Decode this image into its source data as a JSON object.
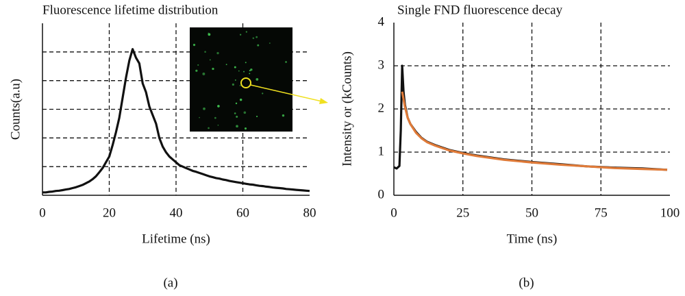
{
  "chart_data": [
    {
      "type": "line",
      "title": "Fluorescence lifetime distribution",
      "x_label": "Lifetime (ns)",
      "y_label": "Counts(a.u)",
      "caption": "(a)",
      "xlim": [
        0,
        80
      ],
      "xticks": [
        0,
        20,
        40,
        60,
        80
      ],
      "ylim": [
        0,
        6
      ],
      "ygrid": [
        1,
        2,
        3,
        4,
        5
      ],
      "grid": true,
      "series": [
        {
          "color": "#111111",
          "x": [
            0,
            1,
            2,
            3,
            4,
            5,
            6,
            7,
            8,
            9,
            10,
            11,
            12,
            13,
            14,
            15,
            16,
            17,
            18,
            19,
            20,
            21,
            22,
            23,
            24,
            25,
            26,
            27,
            28,
            29,
            30,
            31,
            32,
            33,
            34,
            35,
            36,
            37,
            38,
            39,
            40,
            41,
            42,
            43,
            44,
            45,
            46,
            47,
            48,
            49,
            50,
            51,
            52,
            53,
            54,
            55,
            56,
            57,
            58,
            59,
            60,
            61,
            62,
            63,
            64,
            65,
            66,
            67,
            68,
            69,
            70,
            71,
            72,
            73,
            74,
            75,
            76,
            77,
            78,
            79,
            80
          ],
          "values": [
            0.1,
            0.1,
            0.12,
            0.13,
            0.15,
            0.16,
            0.18,
            0.2,
            0.22,
            0.25,
            0.28,
            0.32,
            0.36,
            0.42,
            0.48,
            0.56,
            0.66,
            0.8,
            0.95,
            1.15,
            1.35,
            1.75,
            2.2,
            2.7,
            3.4,
            4.1,
            4.7,
            5.1,
            4.8,
            4.6,
            3.9,
            3.6,
            3.1,
            2.8,
            2.5,
            2.0,
            1.7,
            1.5,
            1.35,
            1.25,
            1.15,
            1.05,
            1.0,
            0.95,
            0.9,
            0.85,
            0.82,
            0.78,
            0.74,
            0.7,
            0.66,
            0.63,
            0.6,
            0.58,
            0.55,
            0.53,
            0.5,
            0.48,
            0.46,
            0.44,
            0.42,
            0.4,
            0.38,
            0.37,
            0.35,
            0.33,
            0.32,
            0.3,
            0.29,
            0.27,
            0.26,
            0.25,
            0.24,
            0.22,
            0.21,
            0.2,
            0.19,
            0.18,
            0.17,
            0.16,
            0.15
          ]
        }
      ]
    },
    {
      "type": "line",
      "title": "Single FND fluorescence decay",
      "x_label": "Time (ns)",
      "y_label": "Intensity or (kCounts)",
      "caption": "(b)",
      "xlim": [
        0,
        100
      ],
      "xticks": [
        0,
        25,
        50,
        75,
        100
      ],
      "ylim": [
        0,
        4
      ],
      "yticks": [
        0,
        1,
        2,
        3,
        4
      ],
      "grid": true,
      "series": [
        {
          "color": "#111111",
          "x": [
            0,
            1,
            2,
            2.5,
            3,
            3.5,
            4,
            5,
            6,
            8,
            10,
            12,
            15,
            20,
            25,
            30,
            40,
            50,
            60,
            70,
            80,
            90,
            99
          ],
          "values": [
            0.65,
            0.62,
            0.68,
            1.5,
            3.0,
            2.4,
            2.1,
            1.8,
            1.65,
            1.47,
            1.33,
            1.24,
            1.16,
            1.05,
            0.98,
            0.92,
            0.83,
            0.77,
            0.72,
            0.67,
            0.64,
            0.62,
            0.59
          ]
        },
        {
          "color": "#e07b39",
          "x": [
            3,
            4,
            5,
            6,
            8,
            10,
            12,
            15,
            20,
            25,
            30,
            40,
            50,
            60,
            70,
            80,
            90,
            99
          ],
          "values": [
            2.4,
            2.05,
            1.8,
            1.65,
            1.45,
            1.32,
            1.23,
            1.15,
            1.04,
            0.97,
            0.91,
            0.82,
            0.76,
            0.71,
            0.67,
            0.63,
            0.61,
            0.59
          ]
        }
      ]
    }
  ]
}
